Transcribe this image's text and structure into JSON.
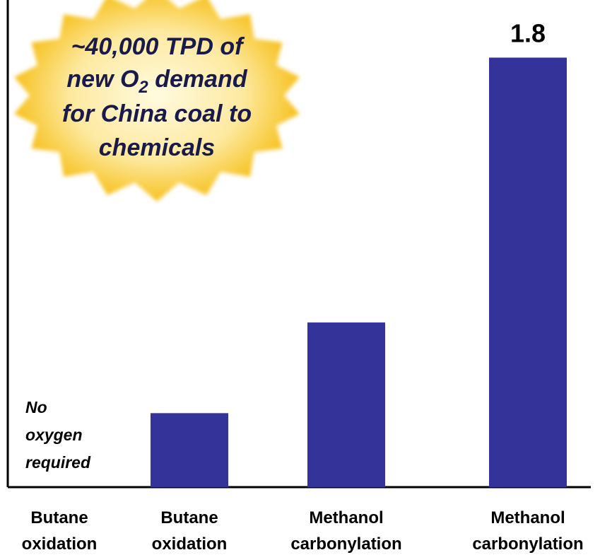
{
  "chart_data": {
    "type": "bar",
    "categories": [
      [
        "Butane",
        "oxidation"
      ],
      [
        "Butane",
        "oxidation"
      ],
      [
        "Methanol",
        "carbonylation"
      ],
      [
        "Methanol",
        "carbonylation"
      ]
    ],
    "values": [
      0,
      0.31,
      0.69,
      1.8
    ],
    "value_labels": [
      "",
      "",
      "",
      "1.8"
    ],
    "ylim": [
      0,
      2.0
    ],
    "bar_color": "#333399",
    "annotations": {
      "no_oxygen": [
        "No",
        "oxygen",
        "required"
      ],
      "callout": {
        "lines": [
          "~40,000 TPD of",
          "new O",
          " demand",
          "for China coal to",
          "chemicals"
        ],
        "subscript": "2",
        "color": "#f5b800"
      }
    }
  }
}
